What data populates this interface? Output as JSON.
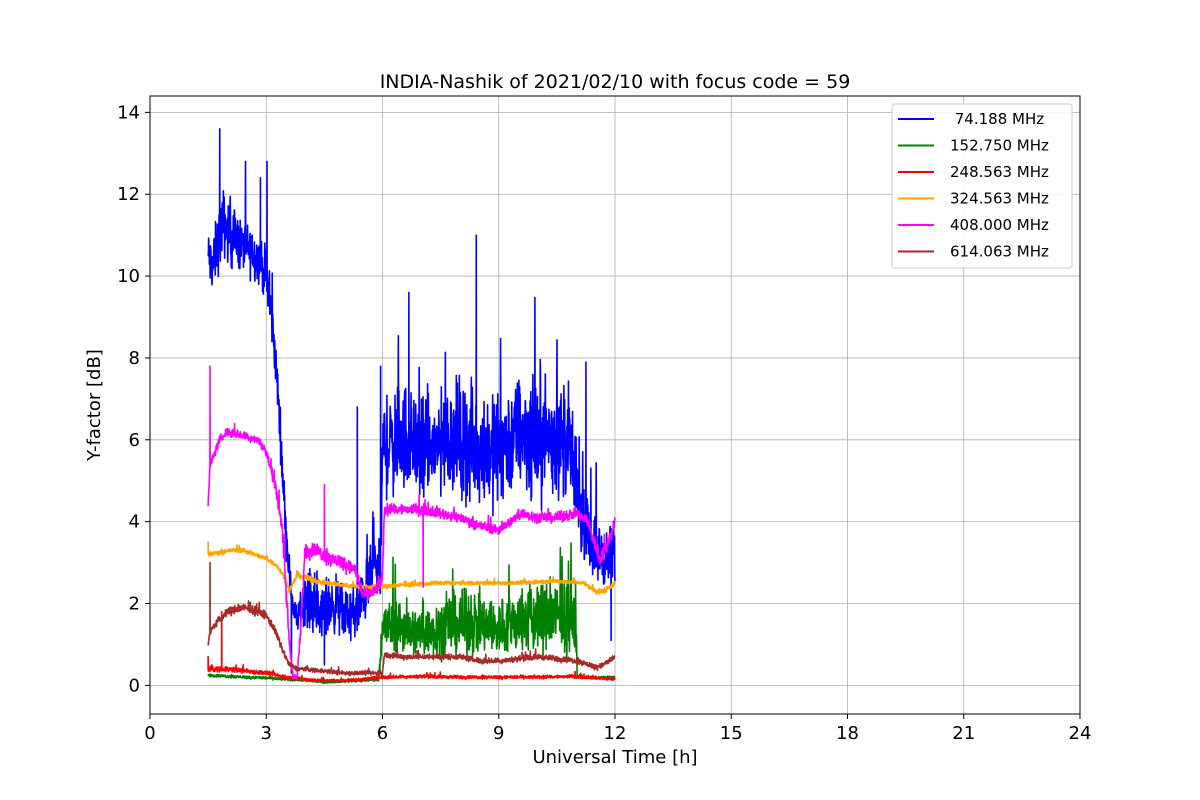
{
  "chart_data": {
    "type": "line",
    "title": "INDIA-Nashik of 2021/02/10 with focus code = 59",
    "xlabel": "Universal Time [h]",
    "ylabel": "Y-factor [dB]",
    "xlim": [
      0,
      24
    ],
    "ylim": [
      -0.7,
      14.4
    ],
    "xticks": [
      0,
      3,
      6,
      9,
      12,
      15,
      18,
      21,
      24
    ],
    "yticks": [
      0,
      2,
      4,
      6,
      8,
      10,
      12,
      14
    ],
    "grid": true,
    "legend_position": "top-right",
    "series": [
      {
        "name": " 74.188 MHz",
        "color": "#0000ff",
        "x": [
          1.5,
          1.6,
          1.8,
          1.9,
          2.0,
          2.2,
          2.4,
          2.6,
          2.8,
          3.0,
          3.1,
          3.2,
          3.3,
          3.4,
          3.5,
          3.6,
          3.7,
          3.8,
          4.0,
          4.2,
          4.4,
          4.6,
          4.8,
          5.0,
          5.2,
          5.4,
          5.6,
          5.8,
          5.95,
          6.0,
          6.2,
          6.4,
          6.6,
          6.8,
          7.0,
          7.3,
          7.6,
          7.9,
          8.2,
          8.5,
          8.8,
          9.0,
          9.3,
          9.6,
          9.9,
          10.2,
          10.5,
          10.8,
          11.0,
          11.1,
          11.2,
          11.4,
          11.6,
          11.8,
          12.0
        ],
        "y": [
          10.5,
          10.2,
          11.0,
          11.3,
          11.1,
          10.9,
          10.7,
          10.6,
          10.4,
          10.0,
          9.3,
          8.4,
          7.2,
          5.6,
          3.9,
          2.6,
          1.9,
          1.6,
          2.2,
          2.0,
          1.7,
          1.9,
          2.0,
          1.8,
          1.7,
          1.9,
          2.4,
          3.0,
          2.7,
          5.8,
          5.9,
          6.0,
          6.1,
          5.9,
          5.7,
          5.8,
          6.0,
          6.1,
          5.9,
          5.8,
          5.7,
          5.9,
          6.0,
          6.2,
          6.0,
          6.1,
          6.0,
          5.9,
          5.0,
          4.3,
          3.9,
          3.5,
          3.2,
          3.1,
          3.2
        ],
        "noise": [
          0.9,
          0.9,
          1.2,
          1.2,
          1.1,
          1.0,
          0.9,
          0.9,
          0.8,
          0.9,
          0.9,
          0.8,
          0.8,
          0.8,
          0.7,
          0.6,
          0.5,
          0.4,
          1.0,
          1.0,
          0.9,
          1.0,
          1.0,
          0.9,
          0.9,
          1.0,
          1.0,
          1.0,
          1.0,
          1.7,
          1.8,
          1.9,
          1.9,
          1.8,
          1.8,
          1.9,
          1.9,
          2.0,
          2.0,
          2.0,
          1.9,
          1.9,
          2.0,
          2.0,
          2.0,
          2.0,
          1.9,
          1.9,
          1.4,
          1.2,
          1.1,
          1.1,
          1.1,
          1.0,
          1.2
        ],
        "peaks": [
          [
            1.8,
            13.6
          ],
          [
            2.85,
            12.4
          ],
          [
            3.02,
            12.8
          ],
          [
            6.68,
            9.6
          ],
          [
            8.42,
            11.0
          ],
          [
            5.35,
            6.8
          ],
          [
            5.95,
            7.8
          ],
          [
            11.25,
            7.9
          ],
          [
            3.65,
            0.3
          ],
          [
            4.5,
            0.5
          ],
          [
            11.9,
            1.1
          ]
        ]
      },
      {
        "name": "152.750 MHz",
        "color": "#008000",
        "x": [
          1.5,
          2.0,
          2.5,
          3.0,
          3.5,
          4.0,
          4.5,
          5.0,
          5.5,
          5.9,
          6.0,
          6.3,
          6.6,
          6.9,
          7.2,
          7.5,
          7.8,
          8.1,
          8.4,
          8.7,
          9.0,
          9.3,
          9.6,
          9.9,
          10.2,
          10.5,
          10.8,
          11.0,
          11.02,
          11.5,
          12.0
        ],
        "y": [
          0.25,
          0.22,
          0.2,
          0.18,
          0.15,
          0.12,
          0.08,
          0.1,
          0.12,
          0.15,
          1.4,
          1.5,
          1.4,
          1.3,
          1.3,
          1.4,
          1.5,
          1.5,
          1.5,
          1.4,
          1.4,
          1.5,
          1.6,
          1.6,
          1.7,
          1.7,
          1.6,
          1.6,
          0.2,
          0.18,
          0.2
        ],
        "noise": [
          0.05,
          0.05,
          0.05,
          0.05,
          0.05,
          0.04,
          0.04,
          0.04,
          0.05,
          0.05,
          0.9,
          1.0,
          0.9,
          0.9,
          0.9,
          1.0,
          1.1,
          1.1,
          1.1,
          1.0,
          1.0,
          1.1,
          1.2,
          1.2,
          1.3,
          1.3,
          1.2,
          1.2,
          0.05,
          0.05,
          0.05
        ],
        "peaks": []
      },
      {
        "name": "248.563 MHz",
        "color": "#ff0000",
        "x": [
          1.5,
          2.0,
          2.5,
          3.0,
          3.5,
          4.0,
          4.5,
          5.0,
          5.5,
          6.0,
          7.0,
          8.0,
          9.0,
          10.0,
          11.0,
          12.0
        ],
        "y": [
          0.4,
          0.4,
          0.35,
          0.3,
          0.2,
          0.15,
          0.12,
          0.12,
          0.15,
          0.2,
          0.22,
          0.2,
          0.2,
          0.2,
          0.22,
          0.15
        ],
        "noise": [
          0.1,
          0.1,
          0.08,
          0.08,
          0.06,
          0.05,
          0.05,
          0.05,
          0.05,
          0.06,
          0.06,
          0.06,
          0.06,
          0.06,
          0.06,
          0.05
        ],
        "peaks": [
          [
            1.5,
            0.7
          ],
          [
            1.85,
            1.8
          ]
        ]
      },
      {
        "name": "324.563 MHz",
        "color": "#ffa500",
        "x": [
          1.5,
          1.8,
          2.1,
          2.4,
          2.7,
          3.0,
          3.3,
          3.5,
          3.6,
          3.8,
          4.1,
          4.5,
          5.0,
          5.5,
          5.9,
          6.5,
          7.5,
          8.5,
          9.5,
          10.5,
          11.2,
          11.5,
          11.7,
          12.0
        ],
        "y": [
          3.2,
          3.25,
          3.3,
          3.3,
          3.2,
          3.1,
          2.9,
          2.6,
          2.3,
          2.7,
          2.6,
          2.5,
          2.45,
          2.4,
          2.4,
          2.45,
          2.5,
          2.5,
          2.5,
          2.55,
          2.5,
          2.3,
          2.3,
          2.5
        ],
        "noise": [
          0.1,
          0.08,
          0.08,
          0.08,
          0.08,
          0.08,
          0.08,
          0.08,
          0.08,
          0.1,
          0.1,
          0.08,
          0.08,
          0.08,
          0.08,
          0.07,
          0.07,
          0.07,
          0.07,
          0.07,
          0.07,
          0.1,
          0.1,
          0.1
        ],
        "peaks": [
          [
            1.5,
            3.5
          ]
        ]
      },
      {
        "name": "408.000 MHz",
        "color": "#ff00ff",
        "x": [
          1.5,
          1.55,
          1.6,
          1.8,
          2.0,
          2.4,
          2.8,
          3.0,
          3.2,
          3.4,
          3.5,
          3.6,
          3.7,
          3.8,
          3.9,
          4.0,
          4.3,
          4.6,
          5.0,
          5.3,
          5.5,
          5.8,
          6.0,
          6.05,
          6.5,
          7.0,
          7.5,
          8.0,
          8.5,
          9.0,
          9.3,
          9.6,
          10.0,
          10.5,
          11.0,
          11.3,
          11.6,
          11.8,
          12.0
        ],
        "y": [
          4.4,
          5.4,
          5.5,
          6.0,
          6.2,
          6.1,
          6.0,
          5.7,
          5.0,
          4.0,
          2.5,
          1.0,
          0.2,
          0.2,
          1.5,
          3.3,
          3.3,
          3.1,
          3.0,
          2.8,
          2.2,
          2.3,
          2.6,
          4.3,
          4.3,
          4.3,
          4.2,
          4.1,
          3.9,
          3.8,
          4.0,
          4.2,
          4.1,
          4.1,
          4.2,
          4.0,
          3.1,
          3.4,
          4.0
        ],
        "noise": [
          0.1,
          0.15,
          0.15,
          0.15,
          0.15,
          0.15,
          0.15,
          0.15,
          0.2,
          0.3,
          0.4,
          0.3,
          0.1,
          0.1,
          0.3,
          0.3,
          0.25,
          0.25,
          0.25,
          0.25,
          0.2,
          0.2,
          0.3,
          0.2,
          0.2,
          0.18,
          0.18,
          0.18,
          0.18,
          0.18,
          0.18,
          0.18,
          0.18,
          0.18,
          0.18,
          0.2,
          0.3,
          0.3,
          0.25
        ],
        "peaks": [
          [
            1.55,
            7.8
          ],
          [
            4.5,
            4.9
          ],
          [
            7.05,
            2.4
          ]
        ]
      },
      {
        "name": "614.063 MHz",
        "color": "#a52a2a",
        "x": [
          1.5,
          1.55,
          1.6,
          1.8,
          2.0,
          2.4,
          2.8,
          3.0,
          3.2,
          3.4,
          3.6,
          3.8,
          4.0,
          4.5,
          5.0,
          5.5,
          6.0,
          6.05,
          6.5,
          7.0,
          8.0,
          8.5,
          9.0,
          9.5,
          10.0,
          10.5,
          11.0,
          11.5,
          11.7,
          12.0
        ],
        "y": [
          1.0,
          1.3,
          1.4,
          1.6,
          1.8,
          1.9,
          1.8,
          1.7,
          1.4,
          0.9,
          0.5,
          0.4,
          0.4,
          0.35,
          0.3,
          0.3,
          0.3,
          0.75,
          0.7,
          0.7,
          0.7,
          0.6,
          0.6,
          0.65,
          0.7,
          0.65,
          0.6,
          0.45,
          0.5,
          0.7
        ],
        "noise": [
          0.1,
          0.1,
          0.1,
          0.15,
          0.15,
          0.15,
          0.15,
          0.15,
          0.15,
          0.12,
          0.1,
          0.08,
          0.08,
          0.08,
          0.08,
          0.08,
          0.08,
          0.1,
          0.1,
          0.1,
          0.1,
          0.1,
          0.1,
          0.1,
          0.1,
          0.1,
          0.1,
          0.1,
          0.1,
          0.1
        ],
        "peaks": [
          [
            1.55,
            3.0
          ]
        ]
      }
    ]
  }
}
